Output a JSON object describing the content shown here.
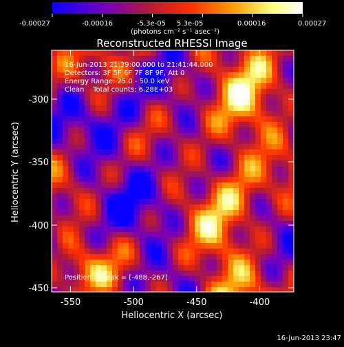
{
  "colorbar": {
    "tick_labels": [
      "-0.00027",
      "-0.00016",
      "-5.3e-05",
      "5.3e-05",
      "0.00016",
      "0.00027"
    ],
    "unit_label": "(photons cm⁻² s⁻¹ asec⁻²)",
    "range": [
      -0.00027,
      0.00027
    ],
    "colormap": [
      "#0a00ff",
      "#7a00b8",
      "#b01a3a",
      "#ff3000",
      "#ff9a00",
      "#ffff80",
      "#ffffff"
    ]
  },
  "title": "Reconstructed RHESSI Image",
  "annotations": {
    "time_range": "16-Jun-2013 21:39:00.000 to 21:41:44.000",
    "detectors": "Detectors: 3F 5F 6F 7F 8F 9F, Att 0",
    "energy_range": "Energy Range: 25.0 - 50.0 keV",
    "clean_counts": "Clean    Total counts: 6.28E+03",
    "peak": "Position of Peak = [-488,-267]"
  },
  "axes": {
    "xlabel": "Heliocentric X (arcsec)",
    "ylabel": "Heliocentric Y (arcsec)",
    "xlim": [
      -565,
      -373
    ],
    "ylim": [
      -453,
      -261
    ],
    "xticks": [
      "-550",
      "-500",
      "-450",
      "-400"
    ],
    "yticks": [
      "-300",
      "-350",
      "-400",
      "-450"
    ]
  },
  "footer": {
    "timestamp": "16-Jun-2013 23:47"
  }
}
